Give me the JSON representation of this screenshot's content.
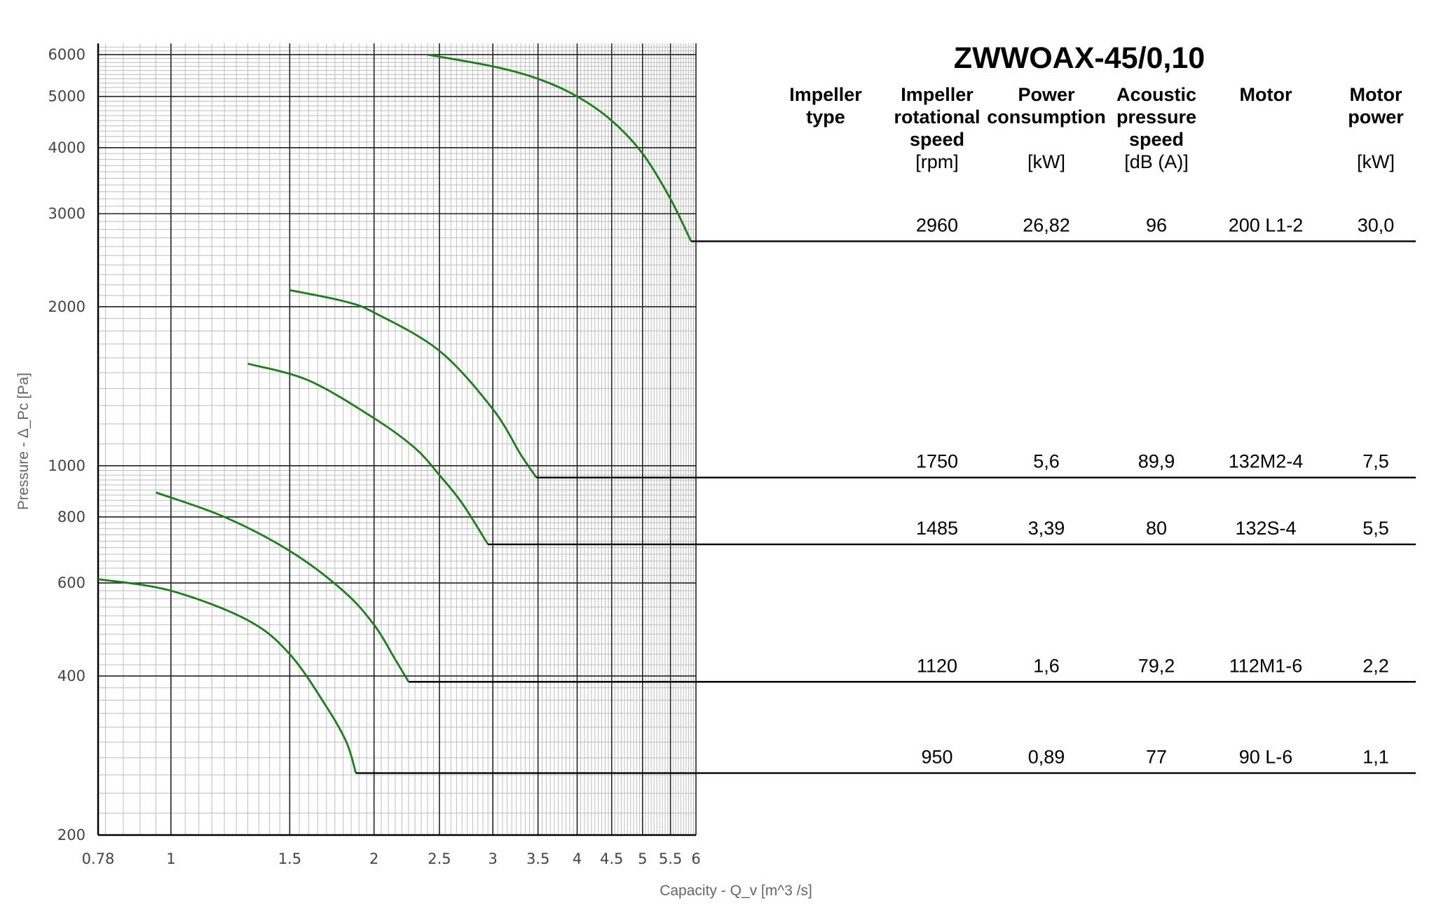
{
  "chart_data": {
    "type": "line",
    "title": "ZWWOAX-45/0,10",
    "xlabel": "Capacity - Q_v [m^3 /s]",
    "ylabel": "Pressure - Δ_Pc [Pa]",
    "x_scale": "log",
    "y_scale": "log",
    "xlim": [
      0.78,
      6
    ],
    "ylim": [
      200,
      6300
    ],
    "grid": true,
    "x_ticks": [
      "0.78",
      "1",
      "1.5",
      "2",
      "2.5",
      "3",
      "3.5",
      "4",
      "4.5",
      "5",
      "5.5",
      "6"
    ],
    "x_tick_values": [
      0.78,
      1,
      1.5,
      2,
      2.5,
      3,
      3.5,
      4,
      4.5,
      5,
      5.5,
      6
    ],
    "y_ticks": [
      "200",
      "400",
      "600",
      "800",
      "1000",
      "2000",
      "3000",
      "4000",
      "5000",
      "6000"
    ],
    "y_tick_values": [
      200,
      400,
      600,
      800,
      1000,
      2000,
      3000,
      4000,
      5000,
      6000
    ],
    "series_color": "#1a7f1a",
    "series": [
      {
        "x": [
          2.4,
          3.0,
          3.5,
          4.0,
          4.5,
          5.0,
          5.5,
          5.9
        ],
        "y": [
          6000,
          5700,
          5400,
          5000,
          4500,
          3900,
          3200,
          2660
        ]
      },
      {
        "x": [
          1.5,
          1.8,
          2.0,
          2.5,
          3.0,
          3.3,
          3.48
        ],
        "y": [
          2150,
          2050,
          1950,
          1650,
          1280,
          1050,
          950
        ]
      },
      {
        "x": [
          1.3,
          1.6,
          2.0,
          2.3,
          2.5,
          2.7,
          2.95
        ],
        "y": [
          1560,
          1450,
          1230,
          1080,
          960,
          850,
          710
        ]
      },
      {
        "x": [
          0.95,
          1.2,
          1.5,
          1.8,
          2.0,
          2.15,
          2.25
        ],
        "y": [
          890,
          800,
          690,
          580,
          500,
          430,
          390
        ]
      },
      {
        "x": [
          0.78,
          1.0,
          1.3,
          1.5,
          1.7,
          1.82,
          1.88
        ],
        "y": [
          610,
          580,
          510,
          440,
          350,
          300,
          262
        ]
      }
    ]
  },
  "table": {
    "headers": [
      {
        "bold": [
          "Impeller",
          "type"
        ],
        "unit": ""
      },
      {
        "bold": [
          "Impeller",
          "rotational",
          "speed"
        ],
        "unit": "[rpm]"
      },
      {
        "bold": [
          "Power",
          "consumption"
        ],
        "unit": "[kW]"
      },
      {
        "bold": [
          "Acoustic",
          "pressure",
          "speed"
        ],
        "unit": "[dB (A)]"
      },
      {
        "bold": [
          "Motor"
        ],
        "unit": ""
      },
      {
        "bold": [
          "Motor",
          "power"
        ],
        "unit": "[kW]"
      }
    ],
    "rows": [
      {
        "rpm": "2960",
        "power": "26,82",
        "acoustic": "96",
        "motor": "200 L1-2",
        "motor_power": "30,0",
        "level": 2660,
        "end_x": 5.9
      },
      {
        "rpm": "1750",
        "power": "5,6",
        "acoustic": "89,9",
        "motor": "132M2-4",
        "motor_power": "7,5",
        "level": 950,
        "end_x": 3.48
      },
      {
        "rpm": "1485",
        "power": "3,39",
        "acoustic": "80",
        "motor": "132S-4",
        "motor_power": "5,5",
        "level": 710,
        "end_x": 2.95
      },
      {
        "rpm": "1120",
        "power": "1,6",
        "acoustic": "79,2",
        "motor": "112M1-6",
        "motor_power": "2,2",
        "level": 390,
        "end_x": 2.25
      },
      {
        "rpm": "950",
        "power": "0,89",
        "acoustic": "77",
        "motor": "90 L-6",
        "motor_power": "1,1",
        "level": 262,
        "end_x": 1.88
      }
    ]
  }
}
